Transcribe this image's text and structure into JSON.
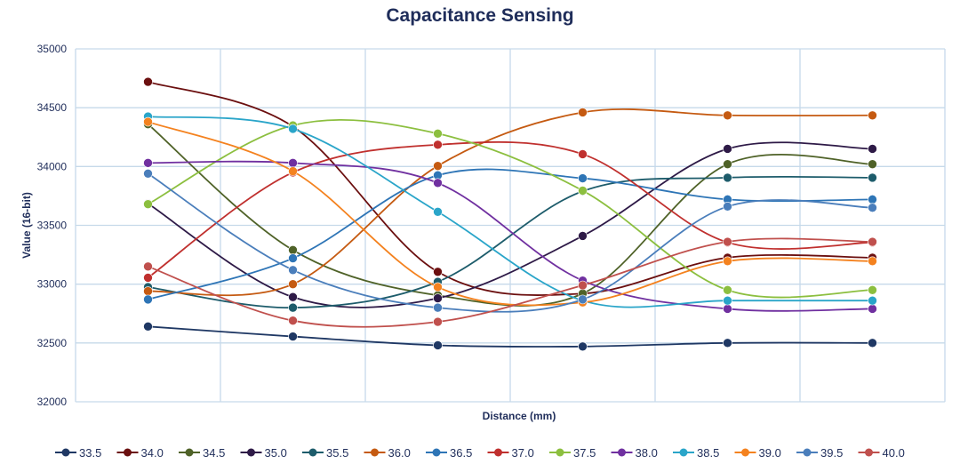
{
  "chart_data": {
    "type": "line",
    "title": "Capacitance Sensing",
    "xlabel": "Distance (mm)",
    "ylabel": "Value (16-bit)",
    "ylim": [
      32000,
      35000
    ],
    "yticks": [
      "32000",
      "32500",
      "33000",
      "33500",
      "34000",
      "34500",
      "35000"
    ],
    "grid": true,
    "legend_position": "bottom",
    "x": [
      1,
      2,
      3,
      4,
      5,
      6
    ],
    "series": [
      {
        "name": "33.5",
        "color": "#1f3864",
        "values": [
          32640,
          32555,
          32480,
          32470,
          32500,
          32500
        ]
      },
      {
        "name": "34.0",
        "color": "#6b0f0f",
        "values": [
          34720,
          34340,
          33105,
          32920,
          33225,
          33225
        ]
      },
      {
        "name": "34.5",
        "color": "#4f6228",
        "values": [
          34360,
          33290,
          32905,
          32920,
          34020,
          34020
        ]
      },
      {
        "name": "35.0",
        "color": "#2e1a47",
        "values": [
          33685,
          32890,
          32880,
          33410,
          34150,
          34150
        ]
      },
      {
        "name": "35.5",
        "color": "#1d5c6b",
        "values": [
          32975,
          32800,
          33020,
          33790,
          33905,
          33905
        ]
      },
      {
        "name": "36.0",
        "color": "#c55a11",
        "values": [
          32940,
          33000,
          34005,
          34460,
          34435,
          34435
        ]
      },
      {
        "name": "36.5",
        "color": "#2e75b6",
        "values": [
          32870,
          33220,
          33925,
          33900,
          33720,
          33720
        ]
      },
      {
        "name": "37.0",
        "color": "#c0302e",
        "values": [
          33055,
          33950,
          34185,
          34105,
          33355,
          33355
        ]
      },
      {
        "name": "37.5",
        "color": "#8cbf3f",
        "values": [
          33680,
          34350,
          34280,
          33795,
          32950,
          32950
        ]
      },
      {
        "name": "38.0",
        "color": "#7030a0",
        "values": [
          34030,
          34030,
          33860,
          33030,
          32790,
          32790
        ]
      },
      {
        "name": "38.5",
        "color": "#2aa5c9",
        "values": [
          34425,
          34320,
          33615,
          32860,
          32860,
          32860
        ]
      },
      {
        "name": "39.0",
        "color": "#f4821f",
        "values": [
          34380,
          33960,
          32975,
          32845,
          33195,
          33195
        ]
      },
      {
        "name": "39.5",
        "color": "#4a7ebb",
        "values": [
          33940,
          33120,
          32800,
          32870,
          33660,
          33650
        ]
      },
      {
        "name": "40.0",
        "color": "#c0504d",
        "values": [
          33150,
          32690,
          32680,
          32990,
          33360,
          33360
        ]
      }
    ]
  }
}
